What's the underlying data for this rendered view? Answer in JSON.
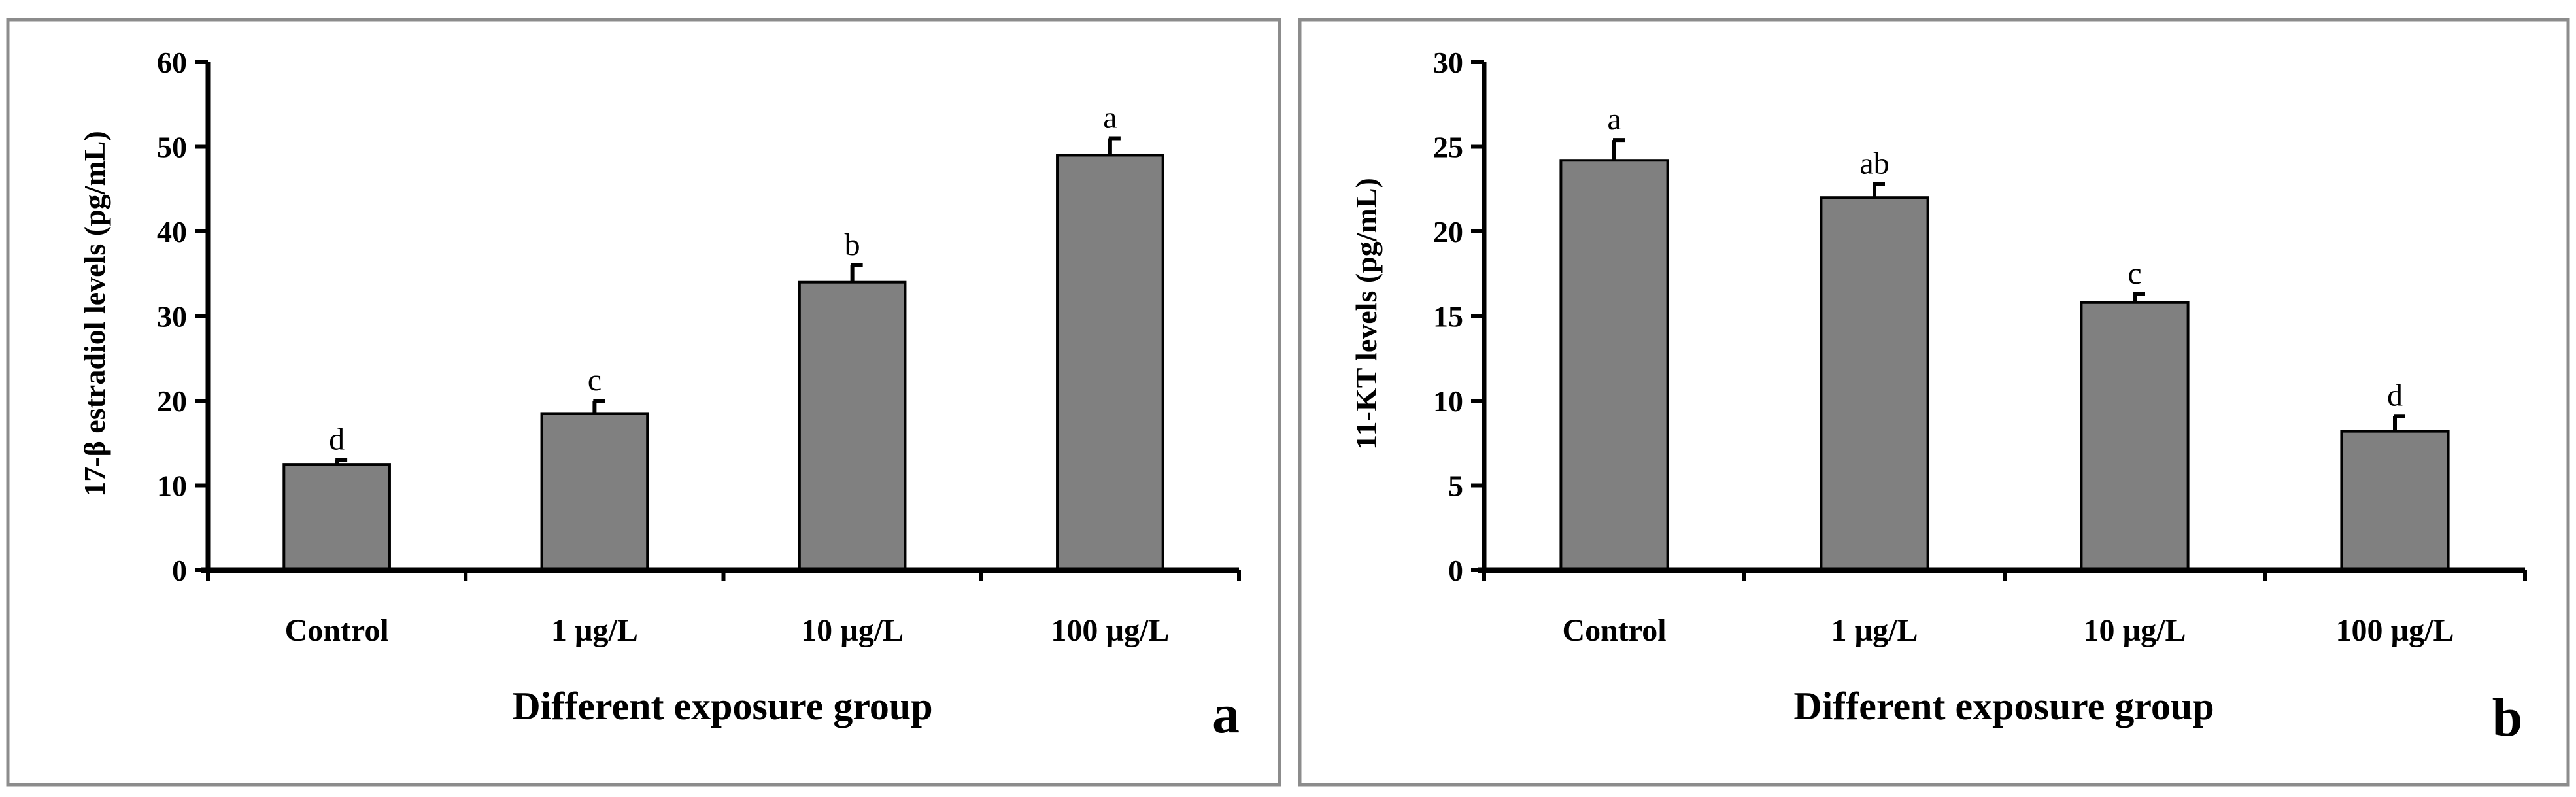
{
  "colors": {
    "bar_fill": "#808080",
    "bar_stroke": "#000000",
    "axis": "#000000",
    "panel_border": "#8c8c8c",
    "background": "#ffffff"
  },
  "chart_data": [
    {
      "type": "bar",
      "panel_label": "a",
      "categories": [
        "Control",
        "1 µg/L",
        "10 µg/L",
        "100 µg/L"
      ],
      "values": [
        12.5,
        18.5,
        34.0,
        49.0
      ],
      "errors": [
        0.5,
        1.5,
        2.0,
        2.0
      ],
      "significance": [
        "d",
        "c",
        "b",
        "a"
      ],
      "xlabel": "Different exposure group",
      "ylabel": "17-β estradiol levels (pg/mL)",
      "ylim": [
        0,
        60
      ],
      "yticks": [
        0,
        10,
        20,
        30,
        40,
        50,
        60
      ],
      "grid": false,
      "legend": "none"
    },
    {
      "type": "bar",
      "panel_label": "b",
      "categories": [
        "Control",
        "1 µg/L",
        "10 µg/L",
        "100 µg/L"
      ],
      "values": [
        24.2,
        22.0,
        15.8,
        8.2
      ],
      "errors": [
        1.2,
        0.8,
        0.5,
        0.9
      ],
      "significance": [
        "a",
        "ab",
        "c",
        "d"
      ],
      "xlabel": "Different exposure group",
      "ylabel": "11-KT levels (pg/mL)",
      "ylim": [
        0,
        30
      ],
      "yticks": [
        0,
        5,
        10,
        15,
        20,
        25,
        30
      ],
      "grid": false,
      "legend": "none"
    }
  ]
}
